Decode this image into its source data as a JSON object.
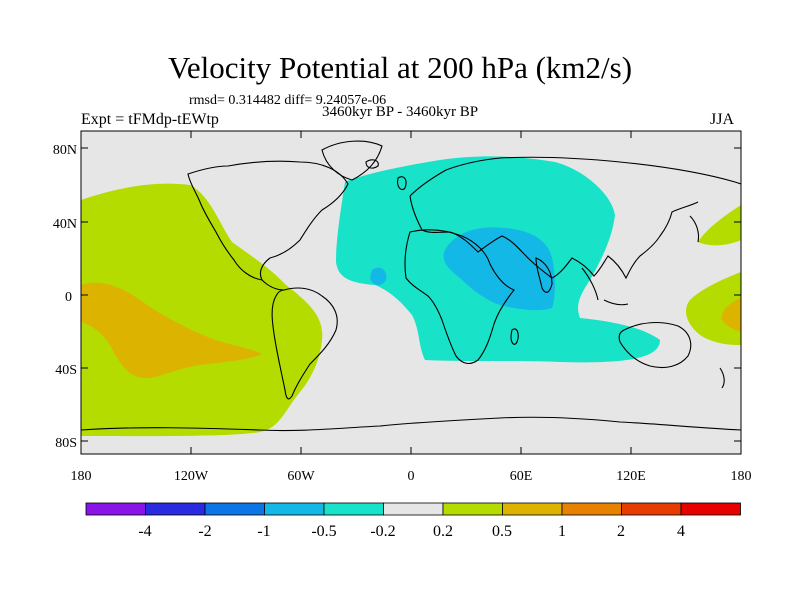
{
  "title": "Velocity Potential at 200 hPa (km2/s)",
  "stats_line": "rmsd= 0.314482 diff= 9.24057e-06",
  "subtitle": "3460kyr BP - 3460kyr BP",
  "experiment": "Expt = tFMdp-tEWtp",
  "season": "JJA",
  "lat_ticks": [
    "80N",
    "40N",
    "0",
    "40S",
    "80S"
  ],
  "lon_ticks": [
    "180",
    "120W",
    "60W",
    "0",
    "60E",
    "120E",
    "180"
  ],
  "colorbar": {
    "labels": [
      "-4",
      "-2",
      "-1",
      "-0.5",
      "-0.2",
      "0.2",
      "0.5",
      "1",
      "2",
      "4"
    ],
    "colors": [
      "#8a14e8",
      "#2a2ae0",
      "#0c74e4",
      "#14b8e6",
      "#18e2c8",
      "#e6e6e6",
      "#b4dc00",
      "#dcb400",
      "#e68200",
      "#e63c00",
      "#e60000"
    ]
  },
  "map_colors": {
    "background": "#e6e6e6",
    "neg_02": "#18e2c8",
    "neg_05": "#14b8e6",
    "pos_02": "#b4dc00",
    "pos_05": "#dcb400"
  }
}
